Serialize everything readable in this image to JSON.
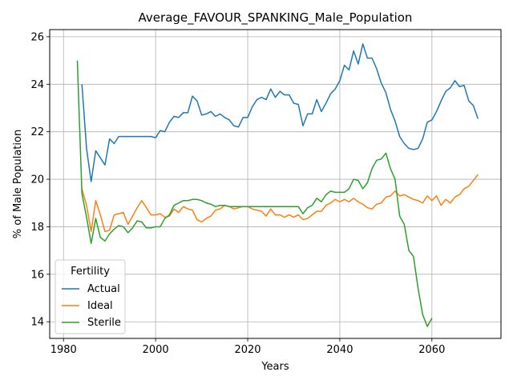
{
  "chart_data": {
    "type": "line",
    "title": "Average_FAVOUR_SPANKING_Male_Population",
    "xlabel": "Years",
    "ylabel": "% of Male Population",
    "xlim": [
      1977,
      2075
    ],
    "ylim": [
      13.3,
      26.3
    ],
    "xticks": [
      1980,
      2000,
      2020,
      2040,
      2060
    ],
    "yticks": [
      14,
      16,
      18,
      20,
      22,
      24,
      26
    ],
    "grid": true,
    "legend": {
      "title": "Fertility",
      "placement": "lower-left"
    },
    "colors": {
      "Actual": "#1f77b4",
      "Ideal": "#ff7f0e",
      "Sterile": "#2ca02c"
    },
    "series": [
      {
        "name": "Actual",
        "x": [
          1984,
          1985,
          1986,
          1987,
          1988,
          1989,
          1990,
          1991,
          1992,
          1993,
          1994,
          1995,
          1996,
          1997,
          1998,
          1999,
          2000,
          2001,
          2002,
          2003,
          2004,
          2005,
          2006,
          2007,
          2008,
          2009,
          2010,
          2011,
          2012,
          2013,
          2014,
          2015,
          2016,
          2017,
          2018,
          2019,
          2020,
          2021,
          2022,
          2023,
          2024,
          2025,
          2026,
          2027,
          2028,
          2029,
          2030,
          2031,
          2032,
          2033,
          2034,
          2035,
          2036,
          2037,
          2038,
          2039,
          2040,
          2041,
          2042,
          2043,
          2044,
          2045,
          2046,
          2047,
          2048,
          2049,
          2050,
          2051,
          2052,
          2053,
          2054,
          2055,
          2056,
          2057,
          2058,
          2059,
          2060,
          2061,
          2062,
          2063,
          2064,
          2065,
          2066,
          2067,
          2068,
          2069,
          2070
        ],
        "y": [
          24.0,
          21.3,
          19.9,
          21.2,
          20.9,
          20.6,
          21.7,
          21.5,
          21.8,
          21.8,
          21.8,
          21.8,
          21.8,
          21.8,
          21.8,
          21.8,
          21.75,
          22.05,
          22.0,
          22.4,
          22.65,
          22.6,
          22.8,
          22.8,
          23.5,
          23.3,
          22.7,
          22.75,
          22.85,
          22.65,
          22.75,
          22.6,
          22.5,
          22.25,
          22.2,
          22.6,
          22.6,
          23.05,
          23.35,
          23.45,
          23.35,
          23.8,
          23.45,
          23.7,
          23.55,
          23.55,
          23.2,
          23.15,
          22.25,
          22.75,
          22.75,
          23.35,
          22.85,
          23.2,
          23.6,
          23.8,
          24.15,
          24.8,
          24.6,
          25.4,
          24.85,
          25.7,
          25.1,
          25.1,
          24.65,
          24.05,
          23.65,
          22.95,
          22.45,
          21.8,
          21.5,
          21.3,
          21.25,
          21.3,
          21.7,
          22.4,
          22.5,
          22.85,
          23.3,
          23.7,
          23.85,
          24.15,
          23.9,
          23.95,
          23.3,
          23.1,
          22.55
        ]
      },
      {
        "name": "Ideal",
        "x": [
          1984,
          1985,
          1986,
          1987,
          1988,
          1989,
          1990,
          1991,
          1992,
          1993,
          1994,
          1995,
          1996,
          1997,
          1998,
          1999,
          2000,
          2001,
          2002,
          2003,
          2004,
          2005,
          2006,
          2007,
          2008,
          2009,
          2010,
          2011,
          2012,
          2013,
          2014,
          2015,
          2016,
          2017,
          2018,
          2019,
          2020,
          2021,
          2022,
          2023,
          2024,
          2025,
          2026,
          2027,
          2028,
          2029,
          2030,
          2031,
          2032,
          2033,
          2034,
          2035,
          2036,
          2037,
          2038,
          2039,
          2040,
          2041,
          2042,
          2043,
          2044,
          2045,
          2046,
          2047,
          2048,
          2049,
          2050,
          2051,
          2052,
          2053,
          2054,
          2055,
          2056,
          2057,
          2058,
          2059,
          2060,
          2061,
          2062,
          2063,
          2064,
          2065,
          2066,
          2067,
          2068,
          2069,
          2070
        ],
        "y": [
          19.6,
          18.9,
          17.8,
          19.1,
          18.5,
          17.8,
          17.85,
          18.5,
          18.55,
          18.6,
          18.1,
          18.45,
          18.8,
          19.1,
          18.8,
          18.5,
          18.5,
          18.55,
          18.4,
          18.45,
          18.75,
          18.6,
          18.85,
          18.75,
          18.7,
          18.3,
          18.2,
          18.35,
          18.45,
          18.7,
          18.75,
          18.9,
          18.85,
          18.75,
          18.8,
          18.85,
          18.85,
          18.75,
          18.7,
          18.65,
          18.45,
          18.75,
          18.5,
          18.5,
          18.4,
          18.5,
          18.4,
          18.5,
          18.3,
          18.35,
          18.5,
          18.65,
          18.65,
          18.9,
          19.0,
          19.15,
          19.05,
          19.15,
          19.05,
          19.2,
          19.05,
          18.95,
          18.8,
          18.75,
          18.95,
          19.0,
          19.25,
          19.3,
          19.5,
          19.3,
          19.35,
          19.25,
          19.15,
          19.1,
          19.0,
          19.3,
          19.1,
          19.3,
          18.9,
          19.15,
          19.0,
          19.25,
          19.35,
          19.6,
          19.7,
          19.95,
          20.2
        ]
      },
      {
        "name": "Sterile",
        "x": [
          1983,
          1984,
          1985,
          1986,
          1987,
          1988,
          1989,
          1990,
          1991,
          1992,
          1993,
          1994,
          1995,
          1996,
          1997,
          1998,
          1999,
          2000,
          2001,
          2002,
          2003,
          2004,
          2005,
          2006,
          2007,
          2008,
          2009,
          2010,
          2011,
          2012,
          2013,
          2014,
          2015,
          2016,
          2017,
          2018,
          2019,
          2020,
          2021,
          2022,
          2023,
          2024,
          2025,
          2026,
          2027,
          2028,
          2029,
          2030,
          2031,
          2032,
          2033,
          2034,
          2035,
          2036,
          2037,
          2038,
          2039,
          2040,
          2041,
          2042,
          2043,
          2044,
          2045,
          2046,
          2047,
          2048,
          2049,
          2050,
          2051,
          2052,
          2053,
          2054,
          2055,
          2056,
          2057,
          2058,
          2059,
          2060
        ],
        "y": [
          25.0,
          19.4,
          18.4,
          17.3,
          18.35,
          17.55,
          17.4,
          17.7,
          17.9,
          18.05,
          18.0,
          17.75,
          17.95,
          18.25,
          18.2,
          17.95,
          17.95,
          18.0,
          18.0,
          18.35,
          18.5,
          18.9,
          19.0,
          19.1,
          19.1,
          19.15,
          19.15,
          19.1,
          19.0,
          18.95,
          18.85,
          18.9,
          18.9,
          18.85,
          18.85,
          18.85,
          18.85,
          18.85,
          18.85,
          18.85,
          18.85,
          18.85,
          18.85,
          18.85,
          18.85,
          18.85,
          18.85,
          18.85,
          18.85,
          18.55,
          18.8,
          18.9,
          19.2,
          19.05,
          19.35,
          19.5,
          19.45,
          19.45,
          19.45,
          19.6,
          20.0,
          19.95,
          19.6,
          19.85,
          20.45,
          20.8,
          20.85,
          21.1,
          20.45,
          20.0,
          18.45,
          18.1,
          17.0,
          16.75,
          15.4,
          14.3,
          13.8,
          14.15
        ]
      }
    ]
  }
}
